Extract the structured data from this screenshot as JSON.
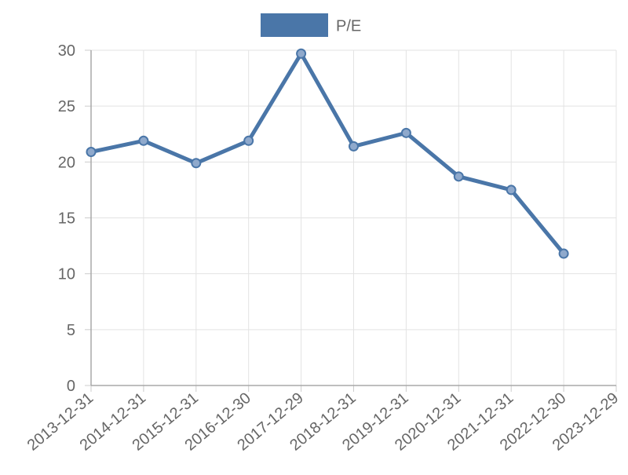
{
  "chart_data": {
    "type": "line",
    "title": "",
    "xlabel": "",
    "ylabel": "",
    "legend_placement": "top-center",
    "grid": true,
    "ylim": [
      0,
      30
    ],
    "yticks": [
      0,
      5,
      10,
      15,
      20,
      25,
      30
    ],
    "x": [
      "2013-12-31",
      "2014-12-31",
      "2015-12-31",
      "2016-12-30",
      "2017-12-29",
      "2018-12-31",
      "2019-12-31",
      "2020-12-31",
      "2021-12-31",
      "2022-12-30",
      "2023-12-29"
    ],
    "series": [
      {
        "name": "P/E",
        "color": "#4a76a8",
        "values": [
          20.9,
          21.9,
          19.9,
          21.9,
          29.7,
          21.4,
          22.6,
          18.7,
          17.5,
          11.8,
          null
        ]
      }
    ]
  }
}
